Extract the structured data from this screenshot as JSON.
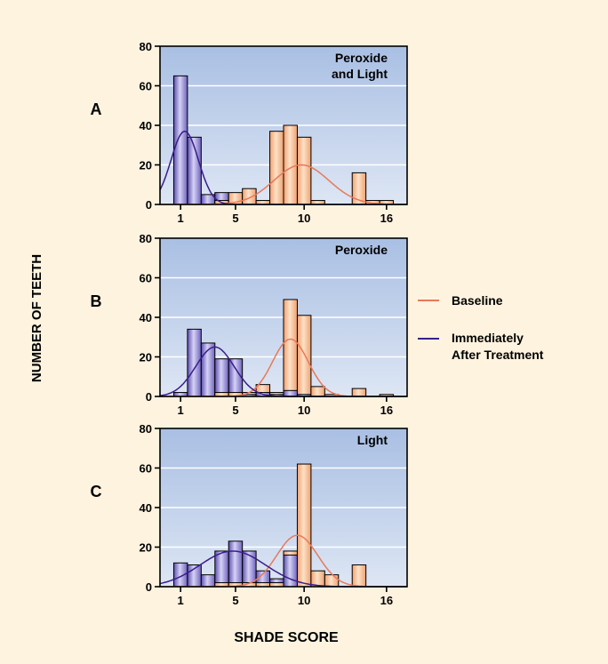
{
  "figure": {
    "y_axis_label": "NUMBER OF TEETH",
    "x_axis_label": "SHADE SCORE",
    "legend": {
      "placement": "right",
      "items": [
        {
          "label": "Baseline",
          "color": "#e8795a"
        },
        {
          "label_lines": [
            "Immediately",
            "After Treatment"
          ],
          "color": "#3a1d8c"
        }
      ]
    }
  },
  "colors": {
    "background": "#fdf3df",
    "plot_bg_top": "#a9bfe3",
    "plot_bg_bottom": "#dde6f4",
    "baseline_bar": "#f7b888",
    "after_bar": "#8a7fd0",
    "baseline_curve": "#e8795a",
    "after_curve": "#3a1d8c"
  },
  "chart_data": [
    {
      "type": "bar",
      "panel_letter": "A",
      "title_lines": [
        "Peroxide",
        "and Light"
      ],
      "xlim": [
        -0.5,
        17.5
      ],
      "ylim": [
        0,
        80
      ],
      "yticks": [
        0,
        20,
        40,
        60,
        80
      ],
      "xticks": [
        1,
        5,
        10,
        16
      ],
      "grid": true,
      "series": [
        {
          "name": "Baseline",
          "x": [
            4,
            5,
            6,
            7,
            8,
            9,
            10,
            11,
            12,
            13,
            14,
            15,
            16
          ],
          "values": [
            2,
            6,
            8,
            2,
            37,
            40,
            34,
            2,
            0,
            0,
            16,
            2,
            2
          ]
        },
        {
          "name": "Immediately After Treatment",
          "x": [
            1,
            2,
            3,
            4,
            5,
            6,
            7,
            8,
            9,
            10,
            11,
            12,
            13,
            14,
            15,
            16
          ],
          "values": [
            65,
            34,
            5,
            6,
            0,
            0,
            0,
            0,
            0,
            0,
            0,
            0,
            0,
            0,
            0,
            0
          ]
        }
      ],
      "curves": {
        "Baseline": {
          "peak": 20,
          "mu": 9.8,
          "sigma": 2.0
        },
        "Immediately After Treatment": {
          "peak": 37,
          "mu": 1.3,
          "sigma": 1.0
        }
      }
    },
    {
      "type": "bar",
      "panel_letter": "B",
      "title_lines": [
        "Peroxide"
      ],
      "xlim": [
        -0.5,
        17.5
      ],
      "ylim": [
        0,
        80
      ],
      "yticks": [
        0,
        20,
        40,
        60,
        80
      ],
      "xticks": [
        1,
        5,
        10,
        16
      ],
      "grid": true,
      "series": [
        {
          "name": "Baseline",
          "x": [
            4,
            5,
            6,
            7,
            8,
            9,
            10,
            11,
            12,
            13,
            14,
            15,
            16
          ],
          "values": [
            2,
            2,
            2,
            6,
            2,
            49,
            41,
            5,
            1,
            0,
            4,
            0,
            1
          ]
        },
        {
          "name": "Immediately After Treatment",
          "x": [
            1,
            2,
            3,
            4,
            5,
            6,
            7,
            8,
            9,
            10,
            11,
            12,
            13,
            14,
            15,
            16
          ],
          "values": [
            2,
            34,
            27,
            19,
            19,
            1,
            2,
            1,
            3,
            1,
            0,
            0,
            0,
            0,
            0,
            0
          ]
        }
      ],
      "curves": {
        "Baseline": {
          "peak": 29,
          "mu": 9.0,
          "sigma": 1.3
        },
        "Immediately After Treatment": {
          "peak": 25,
          "mu": 3.5,
          "sigma": 1.4
        }
      }
    },
    {
      "type": "bar",
      "panel_letter": "C",
      "title_lines": [
        "Light"
      ],
      "xlim": [
        -0.5,
        17.5
      ],
      "ylim": [
        0,
        80
      ],
      "yticks": [
        0,
        20,
        40,
        60,
        80
      ],
      "xticks": [
        1,
        5,
        10,
        16
      ],
      "grid": true,
      "series": [
        {
          "name": "Baseline",
          "x": [
            4,
            5,
            6,
            7,
            8,
            9,
            10,
            11,
            12,
            13,
            14,
            15,
            16
          ],
          "values": [
            2,
            2,
            2,
            2,
            2,
            18,
            62,
            8,
            6,
            0,
            11,
            0,
            0
          ]
        },
        {
          "name": "Immediately After Treatment",
          "x": [
            1,
            2,
            3,
            4,
            5,
            6,
            7,
            8,
            9,
            10,
            11,
            12,
            13,
            14,
            15,
            16
          ],
          "values": [
            12,
            11,
            6,
            18,
            23,
            18,
            8,
            4,
            16,
            0,
            0,
            0,
            0,
            0,
            0,
            0
          ]
        }
      ],
      "curves": {
        "Baseline": {
          "peak": 26,
          "mu": 9.5,
          "sigma": 1.5
        },
        "Immediately After Treatment": {
          "peak": 18,
          "mu": 4.8,
          "sigma": 2.4
        }
      }
    }
  ]
}
